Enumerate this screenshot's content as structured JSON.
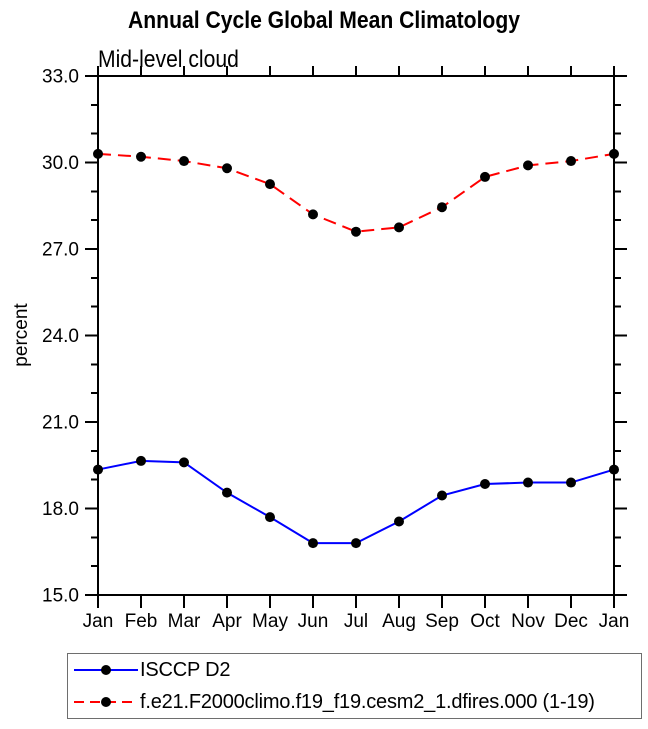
{
  "title": "Annual Cycle Global Mean Climatology",
  "subtitle": "Mid-level cloud",
  "chart_data": {
    "type": "line",
    "x_categories": [
      "Jan",
      "Feb",
      "Mar",
      "Apr",
      "May",
      "Jun",
      "Jul",
      "Aug",
      "Sep",
      "Oct",
      "Nov",
      "Dec",
      "Jan"
    ],
    "ylabel": "percent",
    "ylim": [
      15.0,
      33.0
    ],
    "ytick_major": [
      15.0,
      18.0,
      21.0,
      24.0,
      27.0,
      30.0,
      33.0
    ],
    "ytick_labels": [
      "15.0",
      "18.0",
      "21.0",
      "24.0",
      "27.0",
      "30.0",
      "33.0"
    ],
    "ytick_minor_step": 1.0,
    "grid": false,
    "legend_position": "bottom-left-box",
    "axis_color": "#000000",
    "marker": "filled-circle",
    "marker_color": "#000000",
    "series": [
      {
        "name": "ISCCP D2",
        "color": "#0000ff",
        "line_style": "solid",
        "values": [
          19.35,
          19.65,
          19.6,
          18.55,
          17.7,
          16.8,
          16.8,
          17.55,
          18.45,
          18.85,
          18.9,
          18.9,
          19.35
        ]
      },
      {
        "name": "f.e21.F2000climo.f19_f19.cesm2_1.dfires.000 (1-19)",
        "color": "#ff0000",
        "line_style": "dashed",
        "values": [
          30.3,
          30.2,
          30.05,
          29.8,
          29.25,
          28.2,
          27.6,
          27.75,
          28.45,
          29.5,
          29.9,
          30.05,
          30.3
        ]
      }
    ]
  }
}
